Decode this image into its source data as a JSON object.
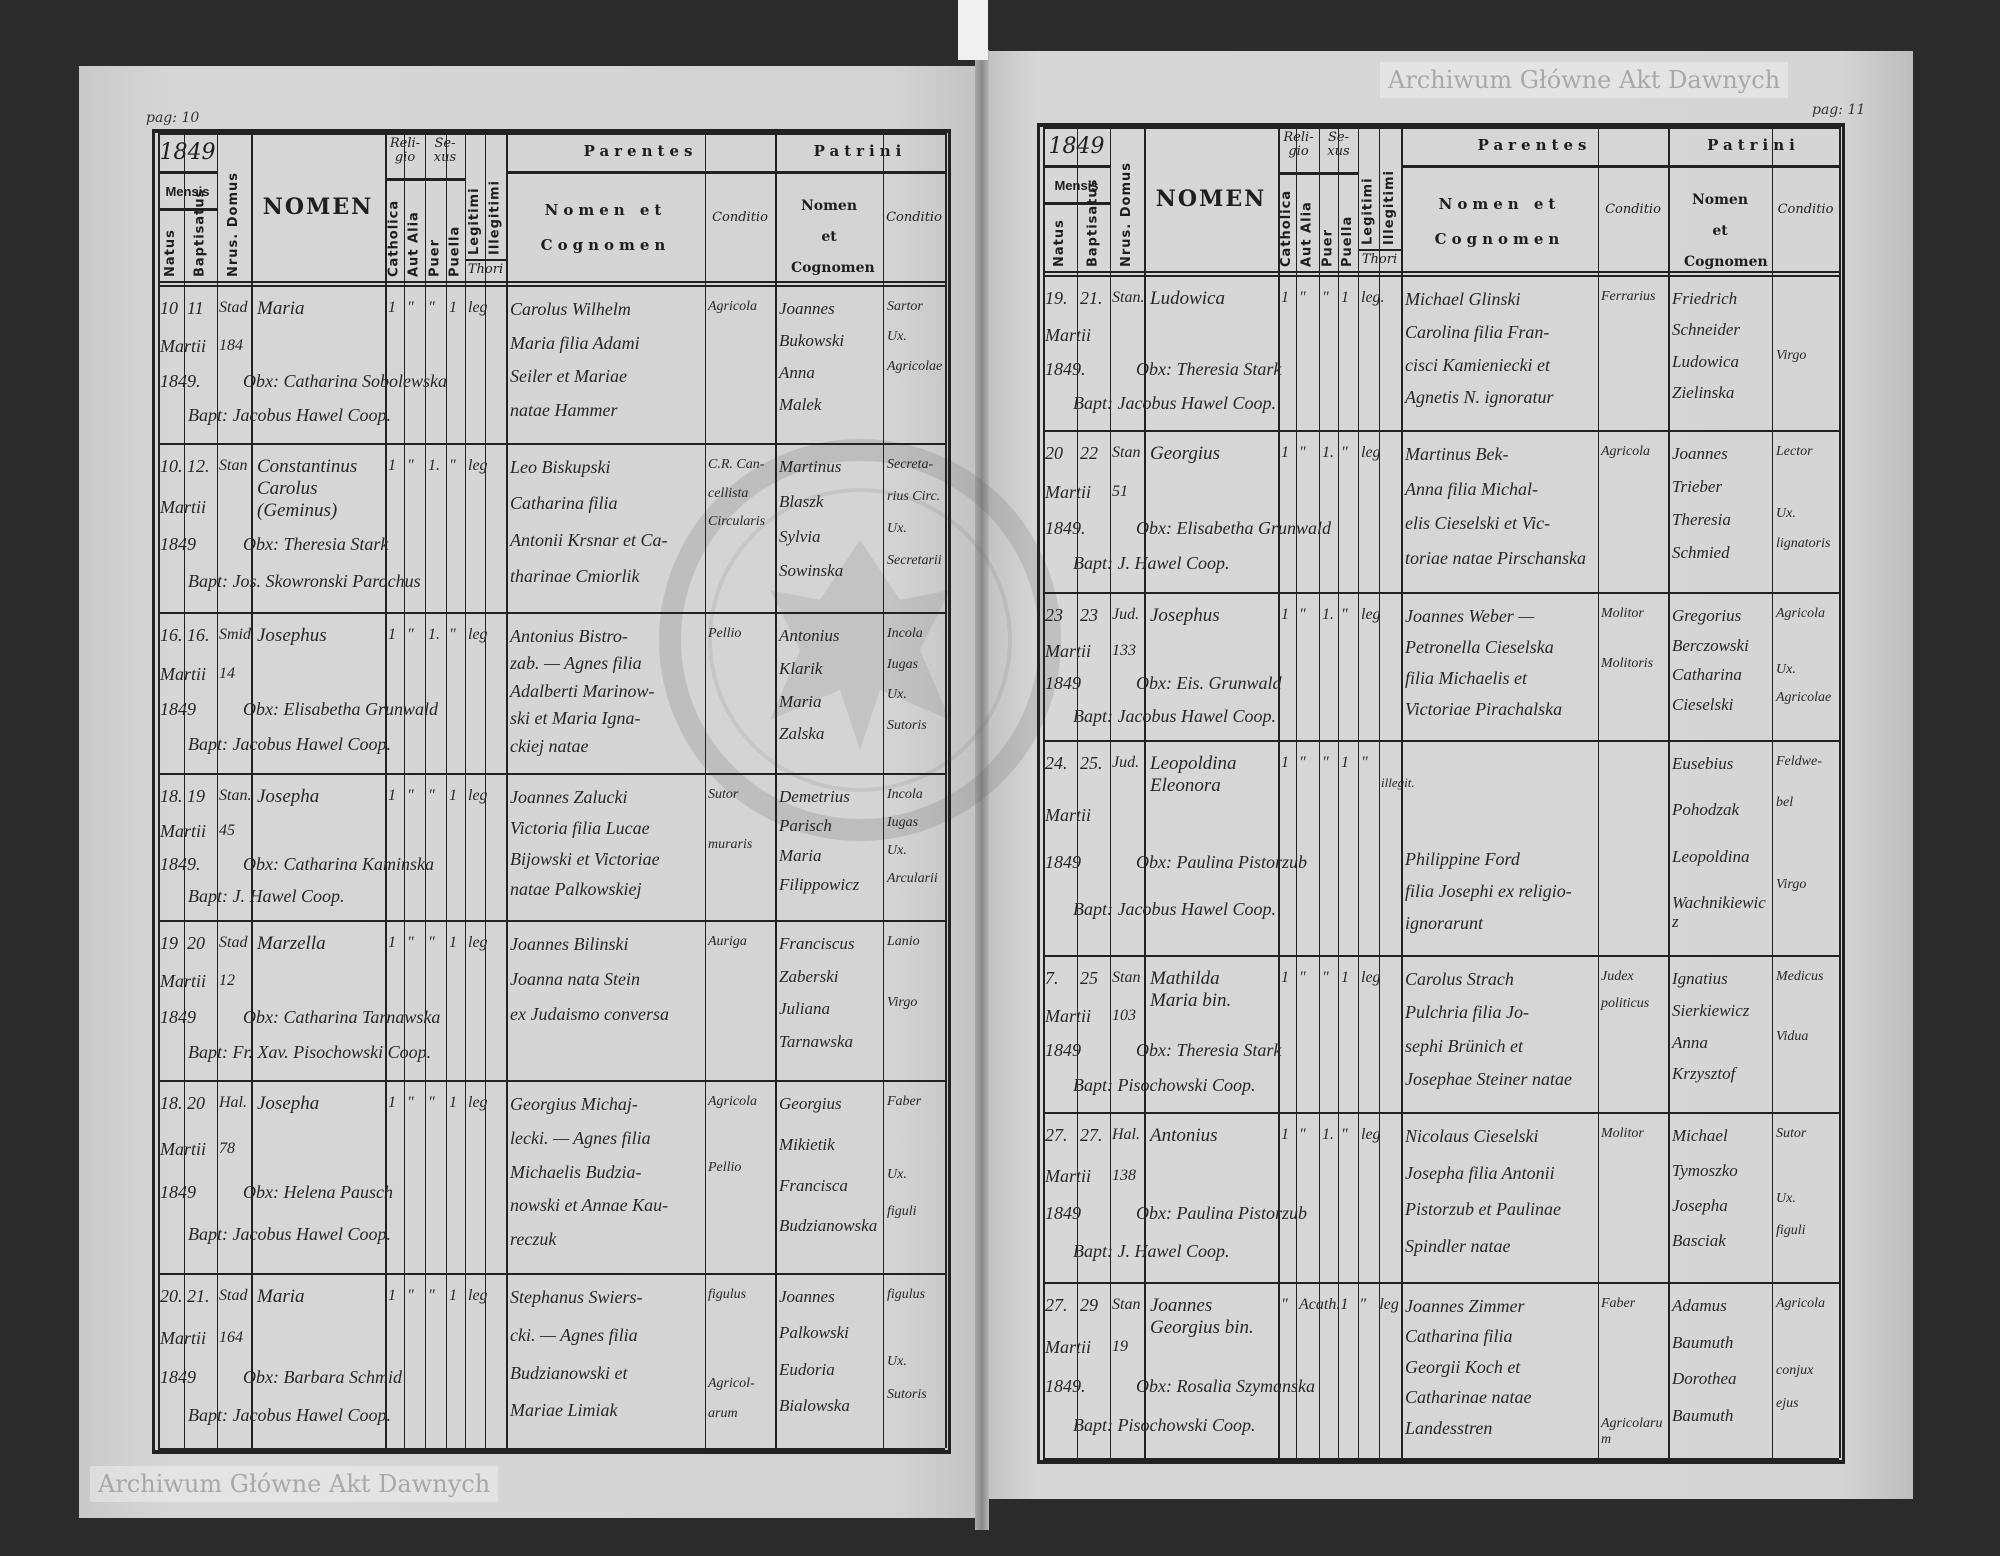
{
  "watermark": "Archiwum Główne Akt Dawnych",
  "headers": {
    "year": "1849",
    "mensis": "Mensis",
    "natus": "Natus",
    "baptisatus": "Baptisatus",
    "domus": "Nrus. Domus",
    "nomen": "NOMEN",
    "religio": "Reli-gio",
    "sexus": "Se-xus",
    "catholica": "Catholica",
    "aut_alia": "Aut Alia",
    "puer": "Puer",
    "puella": "Puella",
    "legitimi": "Legitimi",
    "illegitimi": "Illegitimi",
    "thori": "Thori",
    "parentes": "Parentes",
    "nomen_et_cognomen": "Nomen et Cognomen",
    "conditio": "Conditio",
    "patrini": "Patrini"
  },
  "pages": [
    {
      "page_label": "pag: 10",
      "year": "1849",
      "entries": [
        {
          "natus": [
            "10",
            "Martii",
            "1849."
          ],
          "baptisatus": "11",
          "domus": [
            "Stad",
            "184"
          ],
          "nomen": [
            "Maria"
          ],
          "marks": [
            "1",
            "\"",
            "\"",
            "1",
            "leg"
          ],
          "obstetrix": "Obx: Catharina Sobolewska",
          "baptizans": "Bapt: Jacobus Hawel Coop.",
          "parentes": [
            "Carolus Wilhelm",
            "Maria filia Adami",
            "Seiler et Mariae",
            "natae Hammer"
          ],
          "conditio": [
            "Agricola"
          ],
          "patrini": [
            "Joannes",
            "Bukowski",
            "Anna",
            "Malek"
          ],
          "patrini_conditio": [
            "Sartor",
            "Ux.",
            "Agricolae"
          ]
        },
        {
          "natus": [
            "10.",
            "Martii",
            "1849"
          ],
          "baptisatus": "12.",
          "domus": [
            "Stan",
            ""
          ],
          "nomen": [
            "Constantinus",
            "Carolus",
            "(Geminus)"
          ],
          "marks": [
            "1",
            "\"",
            "1.",
            "\"",
            "leg"
          ],
          "obstetrix": "Obx: Theresia Stark",
          "baptizans": "Bapt: Jos. Skowronski Parochus",
          "parentes": [
            "Leo Biskupski",
            "Catharina filia",
            "Antonii Krsnar et Ca-",
            "tharinae Cmiorlik"
          ],
          "conditio": [
            "C.R. Can-",
            "cellista",
            "Circularis"
          ],
          "patrini": [
            "Martinus",
            "Blaszk",
            "Sylvia",
            "Sowinska"
          ],
          "patrini_conditio": [
            "Secreta-",
            "rius Circ.",
            "Ux.",
            "Secretarii"
          ]
        },
        {
          "natus": [
            "16.",
            "Martii",
            "1849"
          ],
          "baptisatus": "16.",
          "domus": [
            "Smid",
            "14"
          ],
          "nomen": [
            "Josephus"
          ],
          "marks": [
            "1",
            "\"",
            "1.",
            "\"",
            "leg"
          ],
          "obstetrix": "Obx: Elisabetha Grunwald",
          "baptizans": "Bapt: Jacobus Hawel Coop.",
          "parentes": [
            "Antonius Bistro-",
            "zab. — Agnes filia",
            "Adalberti Marinow-",
            "ski et Maria Igna-",
            "ckiej natae"
          ],
          "conditio": [
            "Pellio"
          ],
          "patrini": [
            "Antonius",
            "Klarik",
            "Maria",
            "Zalska"
          ],
          "patrini_conditio": [
            "Incola",
            "Iugas",
            "Ux.",
            "Sutoris"
          ]
        },
        {
          "natus": [
            "18.",
            "Martii",
            "1849."
          ],
          "baptisatus": "19",
          "domus": [
            "Stan.",
            "45"
          ],
          "nomen": [
            "Josepha"
          ],
          "marks": [
            "1",
            "\"",
            "\"",
            "1",
            "leg"
          ],
          "obstetrix": "Obx: Catharina Kaminska",
          "baptizans": "Bapt: J. Hawel Coop.",
          "parentes": [
            "Joannes Zalucki",
            "Victoria filia Lucae",
            "Bijowski et Victoriae",
            "natae Palkowskiej"
          ],
          "conditio": [
            "Sutor",
            "",
            "muraris"
          ],
          "patrini": [
            "Demetrius",
            "Parisch",
            "Maria",
            "Filippowicz"
          ],
          "patrini_conditio": [
            "Incola",
            "Iugas",
            "Ux.",
            "Arcularii"
          ]
        },
        {
          "natus": [
            "19",
            "Martii",
            "1849"
          ],
          "baptisatus": "20",
          "domus": [
            "Stad",
            "12"
          ],
          "nomen": [
            "Marzella"
          ],
          "marks": [
            "1",
            "\"",
            "\"",
            "1",
            "leg"
          ],
          "obstetrix": "Obx: Catharina Tarnawska",
          "baptizans": "Bapt: Fr. Xav. Pisochowski Coop.",
          "parentes": [
            "Joannes Bilinski",
            "Joanna nata Stein",
            "ex Judaismo conversa"
          ],
          "conditio": [
            "Auriga"
          ],
          "patrini": [
            "Franciscus",
            "Zaberski",
            "Juliana",
            "Tarnawska"
          ],
          "patrini_conditio": [
            "Lanio",
            "",
            "Virgo"
          ]
        },
        {
          "natus": [
            "18.",
            "Martii",
            "1849"
          ],
          "baptisatus": "20",
          "domus": [
            "Hal.",
            "78"
          ],
          "nomen": [
            "Josepha"
          ],
          "marks": [
            "1",
            "\"",
            "\"",
            "1",
            "leg"
          ],
          "obstetrix": "Obx: Helena Pausch",
          "baptizans": "Bapt: Jacobus Hawel Coop.",
          "parentes": [
            "Georgius Michaj-",
            "lecki. — Agnes filia",
            "Michaelis Budzia-",
            "nowski et Annae Kau-",
            "reczuk"
          ],
          "conditio": [
            "Agricola",
            "",
            "Pellio"
          ],
          "patrini": [
            "Georgius",
            "Mikietik",
            "Francisca",
            "Budzianowska"
          ],
          "patrini_conditio": [
            "Faber",
            "",
            "Ux.",
            "figuli"
          ]
        },
        {
          "natus": [
            "20.",
            "Martii",
            "1849"
          ],
          "baptisatus": "21.",
          "domus": [
            "Stad",
            "164"
          ],
          "nomen": [
            "Maria"
          ],
          "marks": [
            "1",
            "\"",
            "\"",
            "1",
            "leg"
          ],
          "obstetrix": "Obx: Barbara Schmid",
          "baptizans": "Bapt: Jacobus Hawel Coop.",
          "parentes": [
            "Stephanus Swiers-",
            "cki. — Agnes filia",
            "Budzianowski et",
            "Mariae Limiak"
          ],
          "conditio": [
            "figulus",
            "",
            "",
            "Agricol-",
            "arum"
          ],
          "patrini": [
            "Joannes",
            "Palkowski",
            "Eudoria",
            "Bialowska"
          ],
          "patrini_conditio": [
            "figulus",
            "",
            "Ux.",
            "Sutoris"
          ]
        }
      ]
    },
    {
      "page_label": "pag: 11",
      "year": "1849",
      "entries": [
        {
          "natus": [
            "19.",
            "Martii",
            "1849."
          ],
          "baptisatus": "21.",
          "domus": [
            "Stan.",
            ""
          ],
          "nomen": [
            "Ludowica"
          ],
          "marks": [
            "1",
            "\"",
            "\"",
            "1",
            "leg."
          ],
          "obstetrix": "Obx: Theresia Stark",
          "baptizans": "Bapt: Jacobus Hawel Coop.",
          "parentes": [
            "Michael Glinski",
            "Carolina filia Fran-",
            "cisci Kamieniecki et",
            "Agnetis N. ignoratur"
          ],
          "conditio": [
            "Ferrarius"
          ],
          "patrini": [
            "Friedrich",
            "Schneider",
            "Ludowica",
            "Zielinska"
          ],
          "patrini_conditio": [
            "",
            "",
            "Virgo"
          ]
        },
        {
          "natus": [
            "20",
            "Martii",
            "1849."
          ],
          "baptisatus": "22",
          "domus": [
            "Stan",
            "51"
          ],
          "nomen": [
            "Georgius"
          ],
          "marks": [
            "1",
            "\"",
            "1.",
            "\"",
            "leg"
          ],
          "obstetrix": "Obx: Elisabetha Grunwald",
          "baptizans": "Bapt: J. Hawel Coop.",
          "parentes": [
            "Martinus Bek-",
            "Anna filia Michal-",
            "elis Cieselski et Vic-",
            "toriae natae Pirschanska"
          ],
          "conditio": [
            "Agricola"
          ],
          "patrini": [
            "Joannes",
            "Trieber",
            "Theresia",
            "Schmied"
          ],
          "patrini_conditio": [
            "Lector",
            "",
            "Ux.",
            "lignatoris"
          ]
        },
        {
          "natus": [
            "23",
            "Martii",
            "1849"
          ],
          "baptisatus": "23",
          "domus": [
            "Jud.",
            "133"
          ],
          "nomen": [
            "Josephus"
          ],
          "marks": [
            "1",
            "\"",
            "1.",
            "\"",
            "leg"
          ],
          "obstetrix": "Obx: Eis. Grunwald",
          "baptizans": "Bapt: Jacobus Hawel Coop.",
          "parentes": [
            "Joannes Weber —",
            "Petronella Cieselska",
            "filia Michaelis et",
            "Victoriae Pirachalska"
          ],
          "conditio": [
            "Molitor",
            "",
            "Molitoris"
          ],
          "patrini": [
            "Gregorius",
            "Berczowski",
            "Catharina",
            "Cieselski"
          ],
          "patrini_conditio": [
            "Agricola",
            "",
            "Ux.",
            "Agricolae"
          ]
        },
        {
          "natus": [
            "24.",
            "Martii",
            "1849"
          ],
          "baptisatus": "25.",
          "domus": [
            "Jud.",
            ""
          ],
          "nomen": [
            "Leopoldina",
            "Eleonora"
          ],
          "marks": [
            "1",
            "\"",
            "\"",
            "1",
            "\""
          ],
          "illegitimi": "illegit.",
          "obstetrix": "Obx: Paulina Pistorzub",
          "baptizans": "Bapt: Jacobus Hawel Coop.",
          "parentes": [
            "",
            "",
            "",
            "Philippine Ford",
            "filia Josephi ex religio-",
            "ignorarunt"
          ],
          "conditio": [],
          "patrini": [
            "Eusebius",
            "Pohodzak",
            "Leopoldina",
            "Wachnikiewicz"
          ],
          "patrini_conditio": [
            "Feldwe-",
            "bel",
            "",
            "Virgo"
          ]
        },
        {
          "natus": [
            "7.",
            "Martii",
            "1849"
          ],
          "baptisatus": "25",
          "domus": [
            "Stan",
            "103"
          ],
          "nomen": [
            "Mathilda",
            "Maria bin."
          ],
          "marks": [
            "1",
            "\"",
            "\"",
            "1",
            "leg"
          ],
          "obstetrix": "Obx: Theresia Stark",
          "baptizans": "Bapt: Pisochowski Coop.",
          "parentes": [
            "Carolus Strach",
            "Pulchria filia Jo-",
            "sephi Brünich et",
            "Josephae Steiner natae"
          ],
          "conditio": [
            "Judex",
            "politicus"
          ],
          "patrini": [
            "Ignatius",
            "Sierkiewicz",
            "Anna",
            "Krzysztof"
          ],
          "patrini_conditio": [
            "Medicus",
            "",
            "Vidua"
          ]
        },
        {
          "natus": [
            "27.",
            "Martii",
            "1849"
          ],
          "baptisatus": "27.",
          "domus": [
            "Hal.",
            "138"
          ],
          "nomen": [
            "Antonius"
          ],
          "marks": [
            "1",
            "\"",
            "1.",
            "\"",
            "leg"
          ],
          "obstetrix": "Obx: Paulina Pistorzub",
          "baptizans": "Bapt: J. Hawel Coop.",
          "parentes": [
            "Nicolaus Cieselski",
            "Josepha filia Antonii",
            "Pistorzub et Paulinae",
            "Spindler natae"
          ],
          "conditio": [
            "Molitor"
          ],
          "patrini": [
            "Michael",
            "Tymoszko",
            "Josepha",
            "Basciak"
          ],
          "patrini_conditio": [
            "Sutor",
            "",
            "Ux.",
            "figuli"
          ]
        },
        {
          "natus": [
            "27.",
            "Martii",
            "1849."
          ],
          "baptisatus": "29",
          "domus": [
            "Stan",
            "19"
          ],
          "nomen": [
            "Joannes",
            "Georgius bin."
          ],
          "marks": [
            "\"",
            "Acath.",
            "1",
            "\"",
            "leg"
          ],
          "obstetrix": "Obx: Rosalia Szymanska",
          "baptizans": "Bapt: Pisochowski Coop.",
          "parentes": [
            "Joannes Zimmer",
            "Catharina filia",
            "Georgii Koch et",
            "Catharinae natae",
            "Landesstren"
          ],
          "conditio": [
            "Faber",
            "",
            "",
            "",
            "Agricolarum"
          ],
          "patrini": [
            "Adamus",
            "Baumuth",
            "Dorothea",
            "Baumuth"
          ],
          "patrini_conditio": [
            "Agricola",
            "",
            "conjux",
            "ejus"
          ]
        }
      ]
    }
  ]
}
